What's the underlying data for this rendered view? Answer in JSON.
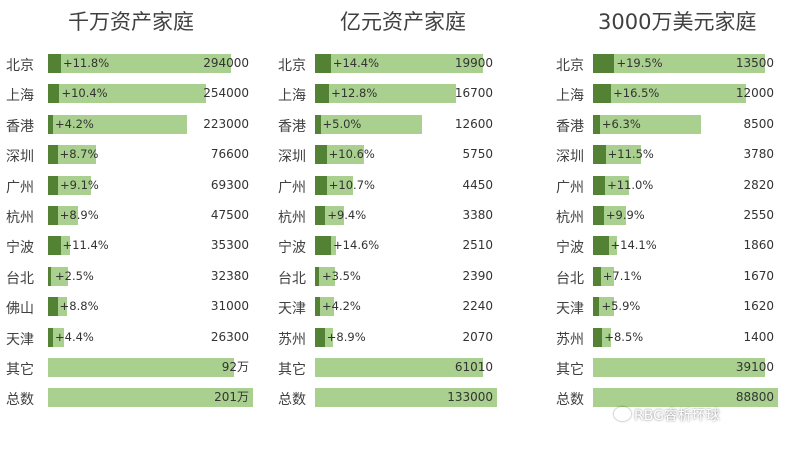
{
  "chart_data": [
    {
      "type": "bar",
      "title": "千万资产家庭",
      "categories": [
        "北京",
        "上海",
        "香港",
        "深圳",
        "广州",
        "杭州",
        "宁波",
        "台北",
        "佛山",
        "天津",
        "其它",
        "总数"
      ],
      "values": [
        294000,
        254000,
        223000,
        76600,
        69300,
        47500,
        35300,
        32380,
        31000,
        26300,
        920000,
        2010000
      ],
      "value_labels": [
        "294000",
        "254000",
        "223000",
        "76600",
        "69300",
        "47500",
        "35300",
        "32380",
        "31000",
        "26300",
        "92万",
        "201万"
      ],
      "growth": [
        11.8,
        10.4,
        4.2,
        8.7,
        9.1,
        8.9,
        11.4,
        2.5,
        8.8,
        4.4,
        null,
        null
      ],
      "growth_labels": [
        "+11.8%",
        "+10.4%",
        "+4.2%",
        "+8.7%",
        "+9.1%",
        "+8.9%",
        "+11.4%",
        "+2.5%",
        "+8.8%",
        "+4.4%",
        "",
        ""
      ],
      "bar_values": [
        294000,
        254000,
        223000,
        76600,
        69300,
        47500,
        35300,
        32380,
        31000,
        26300,
        300000,
        330000
      ],
      "bar_max": 330000
    },
    {
      "type": "bar",
      "title": "亿元资产家庭",
      "categories": [
        "北京",
        "上海",
        "香港",
        "深圳",
        "广州",
        "杭州",
        "宁波",
        "台北",
        "天津",
        "苏州",
        "其它",
        "总数"
      ],
      "values": [
        19900,
        16700,
        12600,
        5750,
        4450,
        3380,
        2510,
        2390,
        2240,
        2070,
        61010,
        133000
      ],
      "value_labels": [
        "19900",
        "16700",
        "12600",
        "5750",
        "4450",
        "3380",
        "2510",
        "2390",
        "2240",
        "2070",
        "61010",
        "133000"
      ],
      "growth": [
        14.4,
        12.8,
        5.0,
        10.6,
        10.7,
        9.4,
        14.6,
        3.5,
        4.2,
        8.9,
        null,
        null
      ],
      "growth_labels": [
        "+14.4%",
        "+12.8%",
        "+5.0%",
        "+10.6%",
        "+10.7%",
        "+9.4%",
        "+14.6%",
        "+3.5%",
        "+4.2%",
        "+8.9%",
        "",
        ""
      ],
      "bar_values": [
        19900,
        16700,
        12600,
        5750,
        4450,
        3380,
        2510,
        2390,
        2240,
        2070,
        19900,
        21500
      ],
      "bar_max": 21500
    },
    {
      "type": "bar",
      "title": "3000万美元家庭",
      "categories": [
        "北京",
        "上海",
        "香港",
        "深圳",
        "广州",
        "杭州",
        "宁波",
        "台北",
        "天津",
        "苏州",
        "其它",
        "总数"
      ],
      "values": [
        13500,
        12000,
        8500,
        3780,
        2820,
        2550,
        1860,
        1670,
        1620,
        1400,
        39100,
        88800
      ],
      "value_labels": [
        "13500",
        "12000",
        "8500",
        "3780",
        "2820",
        "2550",
        "1860",
        "1670",
        "1620",
        "1400",
        "39100",
        "88800"
      ],
      "growth": [
        19.5,
        16.5,
        6.3,
        11.5,
        11.0,
        9.9,
        14.1,
        7.1,
        5.9,
        8.5,
        null,
        null
      ],
      "growth_labels": [
        "+19.5%",
        "+16.5%",
        "+6.3%",
        "+11.5%",
        "+11.0%",
        "+9.9%",
        "+14.1%",
        "+7.1%",
        "+5.9%",
        "+8.5%",
        "",
        ""
      ],
      "bar_values": [
        13500,
        12000,
        8500,
        3780,
        2820,
        2550,
        1860,
        1670,
        1620,
        1400,
        13500,
        14500
      ],
      "bar_max": 14500
    }
  ],
  "colors": {
    "value_bar": "#a9d08e",
    "growth_bar": "#548235",
    "text": "#404040"
  },
  "watermark": {
    "text": "RBG睿析环球",
    "icon": "wechat-icon"
  }
}
